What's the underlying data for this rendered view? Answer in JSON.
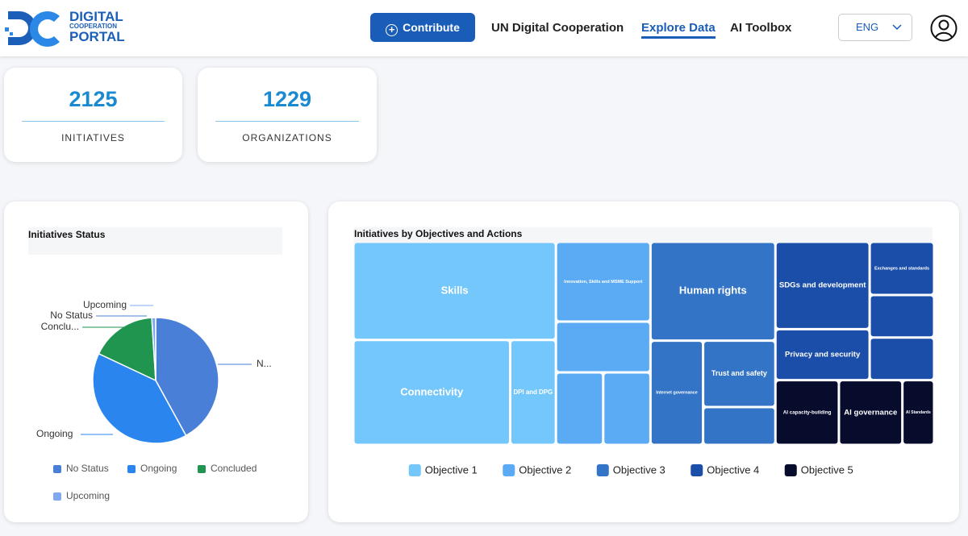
{
  "header": {
    "logo": [
      "DIGITAL",
      "COOPERATION",
      "PORTAL"
    ],
    "nav": {
      "contribute": "Contribute",
      "links": [
        "UN Digital Cooperation",
        "Explore Data",
        "AI Toolbox"
      ],
      "language": "ENG"
    }
  },
  "stats": [
    {
      "value": "2125",
      "label": "INITIATIVES"
    },
    {
      "value": "1229",
      "label": "ORGANIZATIONS"
    }
  ],
  "chart_data": [
    {
      "type": "pie",
      "title": "Initiatives Status",
      "categories": [
        "No Status",
        "Ongoing",
        "Concluded",
        "Upcoming"
      ],
      "values": [
        42,
        40,
        17,
        1
      ],
      "colors": [
        "#4a7fd8",
        "#2a86ee",
        "#1f9550",
        "#7fa8f0"
      ],
      "callouts": [
        "N...",
        "Ongoing",
        "Conclu...",
        "No Status",
        "Upcoming"
      ],
      "legend": "bottom"
    },
    {
      "type": "treemap",
      "title": "Initiatives by Objectives and Actions",
      "series": [
        {
          "name": "Objective 1",
          "color": "#74c7fb",
          "categories": [
            "Skills",
            "Connectivity",
            "DPI and DPG"
          ],
          "values": [
            29,
            24,
            7
          ]
        },
        {
          "name": "Objective 2",
          "color": "#5aabf4",
          "categories": [
            "Innovation, Skills and MSME Support",
            null,
            null,
            null
          ],
          "values": [
            11,
            7,
            5,
            5
          ]
        },
        {
          "name": "Objective 3",
          "color": "#3474c6",
          "categories": [
            "Human rights",
            "Internet governance",
            "Trust and safety",
            null
          ],
          "values": [
            18,
            8,
            7,
            4
          ]
        },
        {
          "name": "Objective 4",
          "color": "#1b4ea8",
          "categories": [
            "SDGs and development",
            "Privacy and security",
            "Exchanges and standards",
            null,
            null
          ],
          "values": [
            12,
            7,
            5,
            4,
            4
          ]
        },
        {
          "name": "Objective 5",
          "color": "#070b2c",
          "categories": [
            "AI capacity-building",
            "AI governance",
            "AI Standards"
          ],
          "values": [
            6,
            6,
            3
          ]
        }
      ],
      "legend": "bottom"
    }
  ]
}
